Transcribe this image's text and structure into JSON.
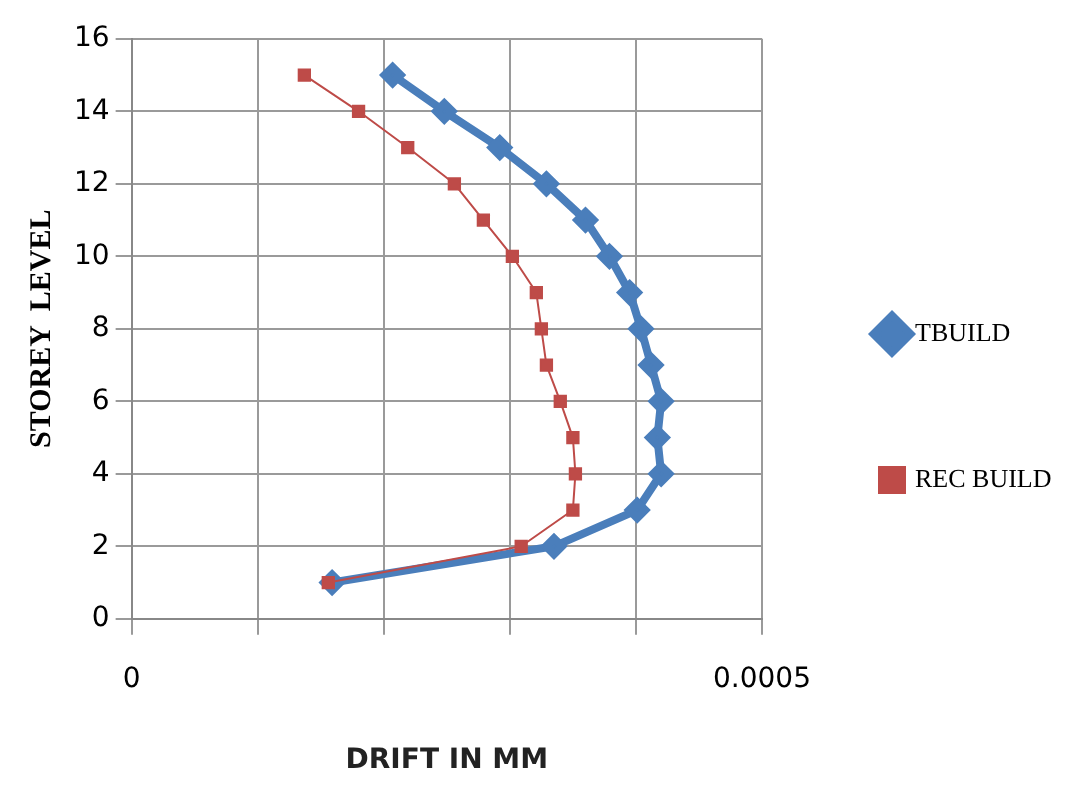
{
  "chart_data": {
    "type": "line",
    "xlabel": "DRIFT IN MM",
    "ylabel": "STOREY  LEVEL",
    "xlim": [
      0,
      0.0005
    ],
    "xticks": [
      0,
      {
        "value": 0.0001,
        "label": null
      },
      {
        "value": 0.0002,
        "label": null
      },
      {
        "value": 0.0003,
        "label": null
      },
      {
        "value": 0.0004,
        "label": null
      },
      0.0005
    ],
    "ylim": [
      0,
      16
    ],
    "yticks": [
      0,
      2,
      4,
      6,
      8,
      10,
      12,
      14,
      16
    ],
    "grid": true,
    "legend": "right",
    "series": [
      {
        "name": "TBUILD",
        "color": "#4a7ebb",
        "marker": "diamond",
        "x": [
          0.000159,
          0.000335,
          0.000401,
          0.00042,
          0.000417,
          0.00042,
          0.000412,
          0.000404,
          0.000395,
          0.000379,
          0.00036,
          0.000329,
          0.000292,
          0.000248,
          0.000207
        ],
        "values": [
          1,
          2,
          3,
          4,
          5,
          6,
          7,
          8,
          9,
          10,
          11,
          12,
          13,
          14,
          15
        ]
      },
      {
        "name": "REC BUILD",
        "color": "#be4b48",
        "marker": "square",
        "x": [
          0.000156,
          0.000309,
          0.00035,
          0.000352,
          0.00035,
          0.00034,
          0.000329,
          0.000325,
          0.000321,
          0.000302,
          0.000279,
          0.000256,
          0.000219,
          0.00018,
          0.000137
        ],
        "values": [
          1,
          2,
          3,
          4,
          5,
          6,
          7,
          8,
          9,
          10,
          11,
          12,
          13,
          14,
          15
        ]
      }
    ]
  }
}
